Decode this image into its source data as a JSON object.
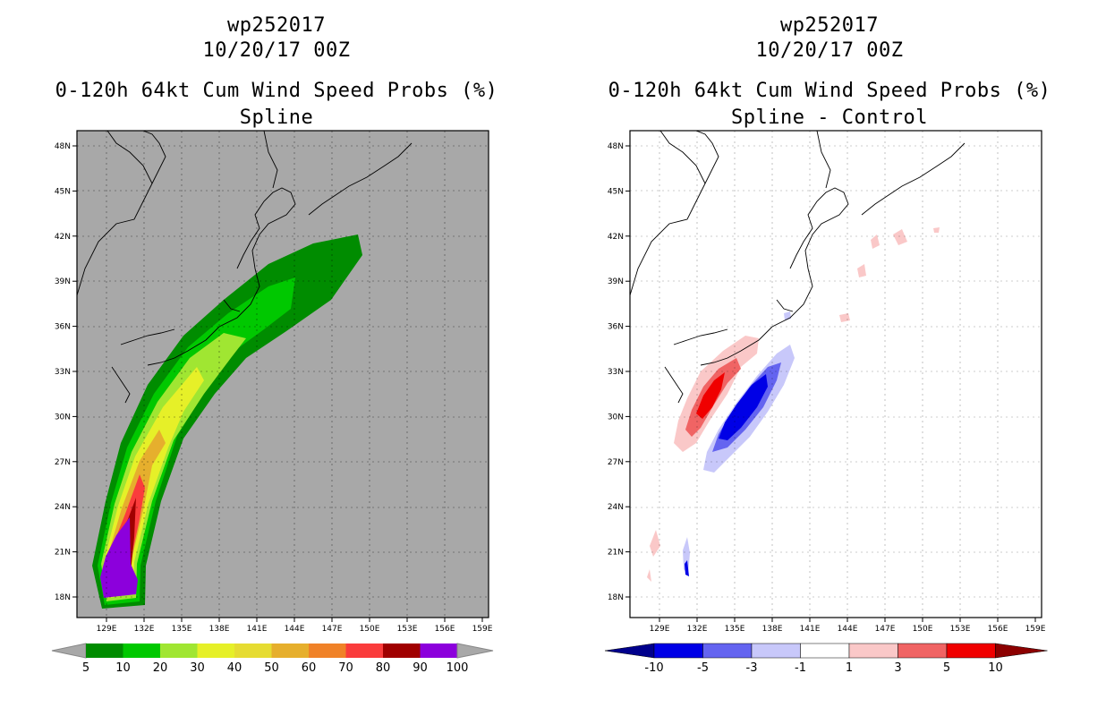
{
  "left_panel": {
    "storm_id": "wp252017",
    "datetime": "10/20/17 00Z",
    "product": "0-120h 64kt Cum Wind Speed Probs (%)",
    "subtitle": "Spline",
    "background_color": "#a8a8a8",
    "colorbar": {
      "labels": [
        "5",
        "10",
        "20",
        "30",
        "40",
        "50",
        "60",
        "70",
        "80",
        "90",
        "100"
      ],
      "colors": [
        "#008c00",
        "#00c800",
        "#a0e632",
        "#e6f028",
        "#e6dc32",
        "#e6af2d",
        "#f08228",
        "#fa3c3c",
        "#a00000",
        "#8c00dc"
      ]
    }
  },
  "right_panel": {
    "storm_id": "wp252017",
    "datetime": "10/20/17 00Z",
    "product": "0-120h 64kt Cum Wind Speed Probs (%)",
    "subtitle": "Spline - Control",
    "background_color": "#ffffff",
    "colorbar": {
      "labels": [
        "-10",
        "-5",
        "-3",
        "-1",
        "1",
        "3",
        "5",
        "10"
      ],
      "colors": [
        "#00008c",
        "#0000e6",
        "#6464f0",
        "#c8c8fa",
        "#ffffff",
        "#fac8c8",
        "#f06464",
        "#f00000",
        "#8c0000"
      ]
    }
  },
  "axes": {
    "lon_labels": [
      "129E",
      "132E",
      "135E",
      "138E",
      "141E",
      "144E",
      "147E",
      "150E",
      "153E",
      "156E",
      "159E"
    ],
    "lat_labels": [
      "48N",
      "45N",
      "42N",
      "39N",
      "36N",
      "33N",
      "30N",
      "27N",
      "24N",
      "21N",
      "18N"
    ]
  }
}
